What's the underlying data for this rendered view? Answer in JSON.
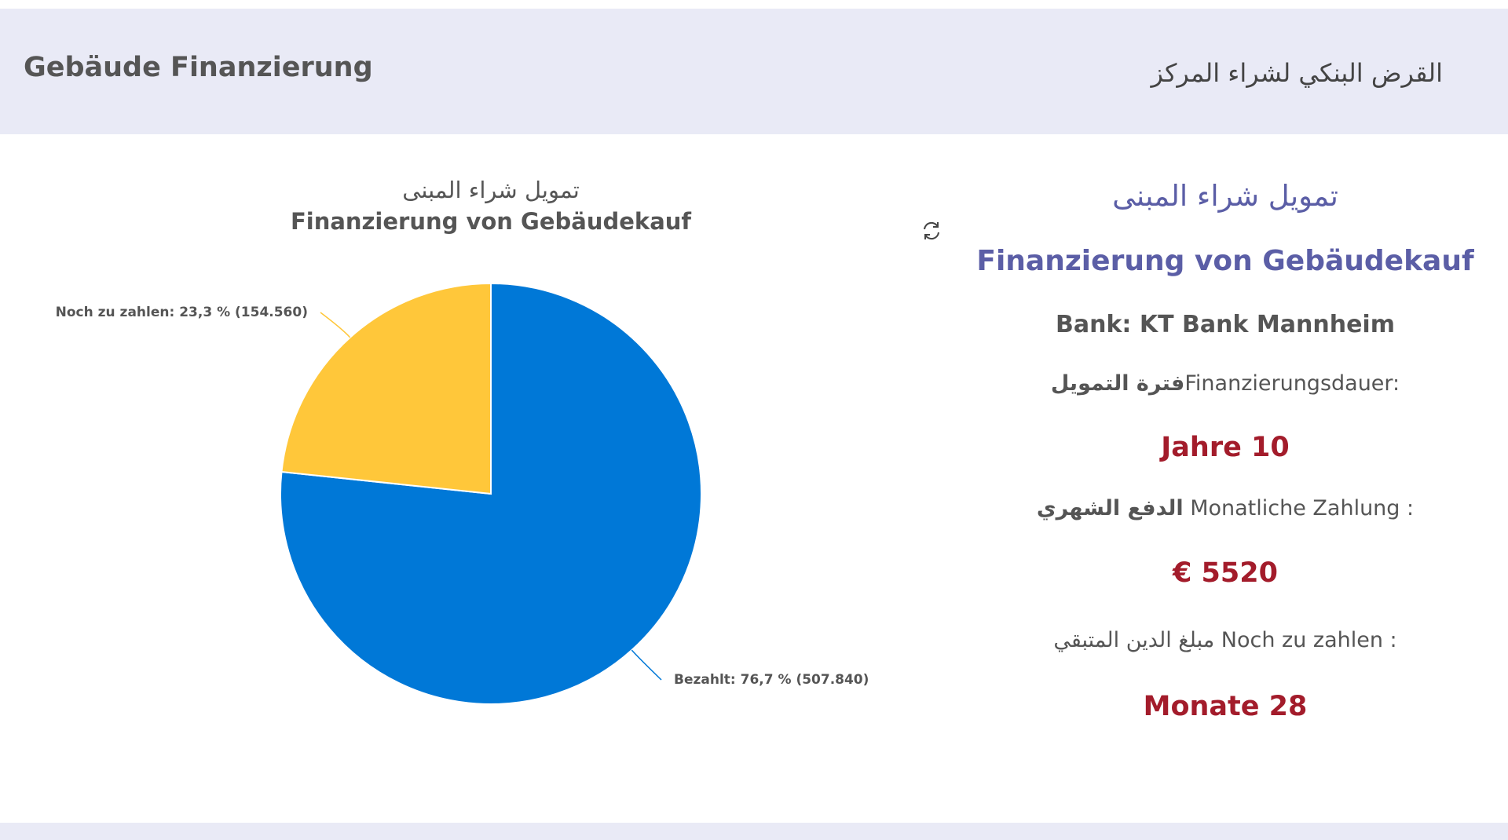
{
  "header": {
    "title_left": "Gebäude Finanzierung",
    "title_right": "القرض البنكي لشراء المركز"
  },
  "chart": {
    "title_ar": "تمويل شراء المبنى",
    "title_de": "Finanzierung von Gebäudekauf"
  },
  "chart_data": {
    "type": "pie",
    "title": "تمويل شراء المبنى / Finanzierung von Gebäudekauf",
    "slices": [
      {
        "label": "Bezahlt: 76,7 % (507.840)",
        "name": "Bezahlt",
        "value": 507840,
        "percent": 76.7,
        "color": "#0078d7"
      },
      {
        "label": "Noch zu zahlen: 23,3 % (154.560)",
        "name": "Noch zu zahlen",
        "value": 154560,
        "percent": 23.3,
        "color": "#ffc73a"
      }
    ]
  },
  "info": {
    "title_ar": "تمويل شراء المبنى",
    "title_de": "Finanzierung von Gebäudekauf",
    "bank": "Bank: KT Bank Mannheim",
    "duration_label_de": "Finanzierungsdauer:",
    "duration_label_ar": "فترة التمويل",
    "duration_value": "Jahre 10",
    "monthly_label_de": "Monatliche Zahlung :",
    "monthly_label_ar": "الدفع الشهري",
    "monthly_value": "€ 5520",
    "remaining_label_de": "Noch zu zahlen :",
    "remaining_label_ar": "مبلغ الدين المتبقي",
    "remaining_value": "Monate 28"
  },
  "icons": {
    "refresh": "refresh-icon"
  },
  "colors": {
    "header_bg": "#e9eaf6",
    "accent_title": "#5b5ea6",
    "value_red": "#a31c2b",
    "slice_paid": "#0078d7",
    "slice_remaining": "#ffc73a"
  }
}
